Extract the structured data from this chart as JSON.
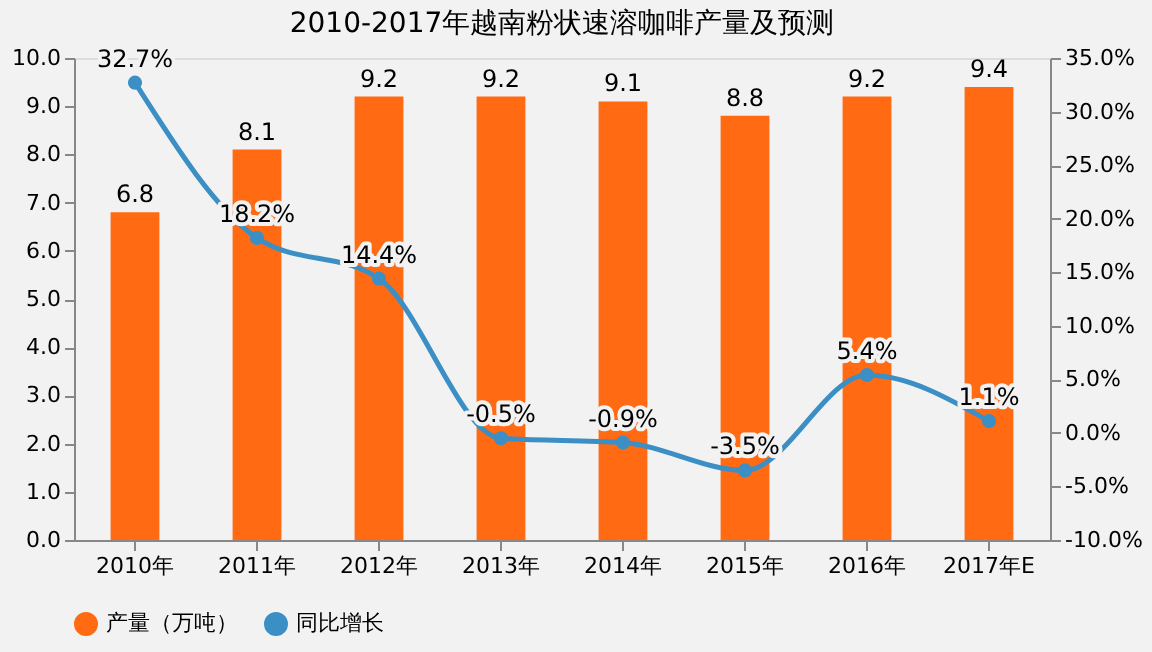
{
  "chart_data": {
    "type": "bar",
    "title": "2010-2017年越南粉状速溶咖啡产量及预测",
    "categories": [
      "2010年",
      "2011年",
      "2012年",
      "2013年",
      "2014年",
      "2015年",
      "2016年",
      "2017年E"
    ],
    "series": [
      {
        "name": "产量（万吨）",
        "color": "#ff6a13",
        "values": [
          6.8,
          8.1,
          9.2,
          9.2,
          9.1,
          8.8,
          9.2,
          9.4
        ]
      },
      {
        "name": "同比增长",
        "type": "line",
        "axis": "y2",
        "color": "#3b8fc4",
        "marker": "circle",
        "values": [
          32.7,
          18.2,
          14.4,
          -0.5,
          -0.9,
          -3.5,
          5.4,
          1.1
        ],
        "value_labels": [
          "32.7%",
          "18.2%",
          "14.4%",
          "-0.5%",
          "-0.9%",
          "-3.5%",
          "5.4%",
          "1.1%"
        ]
      }
    ],
    "data_labels": true,
    "ylim": [
      0,
      10
    ],
    "yticks": [
      {
        "value": 0,
        "label": "0.0"
      },
      {
        "value": 1,
        "label": "1.0"
      },
      {
        "value": 2,
        "label": "2.0"
      },
      {
        "value": 3,
        "label": "3.0"
      },
      {
        "value": 4,
        "label": "4.0"
      },
      {
        "value": 5,
        "label": "5.0"
      },
      {
        "value": 6,
        "label": "6.0"
      },
      {
        "value": 7,
        "label": "7.0"
      },
      {
        "value": 8,
        "label": "8.0"
      },
      {
        "value": 9,
        "label": "9.0"
      },
      {
        "value": 10,
        "label": "10.0"
      }
    ],
    "y2lim": [
      -10,
      35
    ],
    "y2ticks": [
      {
        "value": -10,
        "label": "-10.0%"
      },
      {
        "value": -5,
        "label": "-5.0%"
      },
      {
        "value": 0,
        "label": "0.0%"
      },
      {
        "value": 5,
        "label": "5.0%"
      },
      {
        "value": 10,
        "label": "10.0%"
      },
      {
        "value": 15,
        "label": "15.0%"
      },
      {
        "value": 20,
        "label": "20.0%"
      },
      {
        "value": 25,
        "label": "25.0%"
      },
      {
        "value": 30,
        "label": "30.0%"
      },
      {
        "value": 35,
        "label": "35.0%"
      }
    ],
    "legend": "bottom",
    "grid": false
  }
}
